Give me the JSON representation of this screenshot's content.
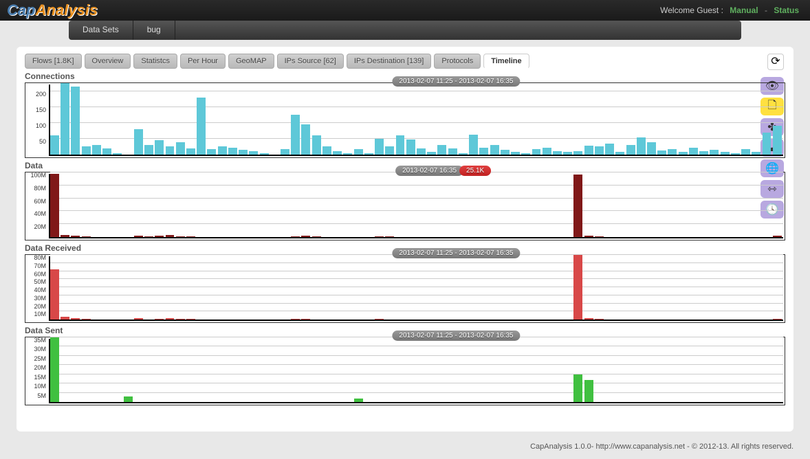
{
  "logo": {
    "part1": "Cap",
    "part2": "Analysis"
  },
  "topbar": {
    "welcome": "Welcome Guest :",
    "links": [
      "Manual",
      "Status"
    ],
    "separator": "-"
  },
  "menu": {
    "items": [
      "Data Sets",
      "bug"
    ]
  },
  "tabs": [
    {
      "label": "Flows [1.8K]",
      "active": false
    },
    {
      "label": "Overview",
      "active": false
    },
    {
      "label": "Statistcs",
      "active": false
    },
    {
      "label": "Per Hour",
      "active": false
    },
    {
      "label": "GeoMAP",
      "active": false
    },
    {
      "label": "IPs Source [62]",
      "active": false
    },
    {
      "label": "IPs Destination [139]",
      "active": false
    },
    {
      "label": "Protocols",
      "active": false
    },
    {
      "label": "Timeline",
      "active": true
    }
  ],
  "side_icons": [
    {
      "name": "eye-icon",
      "glyph": "👁",
      "cls": "si-purple"
    },
    {
      "name": "page-icon",
      "glyph": "🗋",
      "cls": "si-yellow"
    },
    {
      "name": "share-icon",
      "glyph": "✤",
      "cls": "si-purple"
    },
    {
      "name": "cloud-icon",
      "glyph": "☁",
      "cls": "si-purple"
    },
    {
      "name": "globe-icon",
      "glyph": "🌐",
      "cls": "si-purple"
    },
    {
      "name": "arrows-icon",
      "glyph": "⇿",
      "cls": "si-purple"
    },
    {
      "name": "clock-icon",
      "glyph": "🕓",
      "cls": "si-purple"
    }
  ],
  "charts": [
    {
      "title": "Connections",
      "height": 110,
      "badge": "2013-02-07 11:25 - 2013-02-07 16:35",
      "badge2": null,
      "bar_color": "#5ec8d8",
      "ymax": 225,
      "yticks": [
        {
          "v": 200,
          "l": "200"
        },
        {
          "v": 150,
          "l": "150"
        },
        {
          "v": 100,
          "l": "100"
        },
        {
          "v": 50,
          "l": "50"
        }
      ],
      "bars": [
        60,
        225,
        215,
        25,
        30,
        20,
        5,
        0,
        80,
        30,
        45,
        25,
        40,
        20,
        180,
        18,
        25,
        22,
        15,
        10,
        5,
        0,
        18,
        125,
        95,
        60,
        25,
        10,
        5,
        18,
        5,
        50,
        25,
        60,
        48,
        20,
        8,
        30,
        20,
        5,
        62,
        22,
        30,
        15,
        8,
        5,
        18,
        22,
        10,
        8,
        10,
        28,
        25,
        35,
        8,
        30,
        55,
        40,
        12,
        18,
        8,
        22,
        10,
        15,
        8,
        5,
        18,
        8,
        70,
        90
      ]
    },
    {
      "title": "Data",
      "height": 100,
      "badge": "2013-02-07 16:35",
      "badge2": "25.1K",
      "bar_color": "#801818",
      "ymax": 100,
      "yticks": [
        {
          "v": 100,
          "l": "100M"
        },
        {
          "v": 80,
          "l": "80M"
        },
        {
          "v": 60,
          "l": "60M"
        },
        {
          "v": 40,
          "l": "40M"
        },
        {
          "v": 20,
          "l": "20M"
        }
      ],
      "bars": [
        98,
        3,
        2,
        1,
        0,
        0,
        0,
        0,
        2,
        1,
        2,
        3,
        1,
        1,
        0,
        0,
        0,
        0,
        0,
        0,
        0,
        0,
        0,
        1,
        2,
        1,
        0,
        0,
        0,
        0,
        0,
        1,
        1,
        0,
        0,
        0,
        0,
        0,
        0,
        0,
        0,
        0,
        0,
        0,
        0,
        0,
        0,
        0,
        0,
        0,
        97,
        2,
        1,
        0,
        0,
        0,
        0,
        0,
        0,
        0,
        0,
        0,
        0,
        0,
        0,
        0,
        0,
        0,
        0,
        2
      ]
    },
    {
      "title": "Data Received",
      "height": 100,
      "badge": "2013-02-07 11:25 - 2013-02-07 16:35",
      "badge2": null,
      "bar_color": "#d84848",
      "ymax": 80,
      "yticks": [
        {
          "v": 80,
          "l": "80M"
        },
        {
          "v": 70,
          "l": "70M"
        },
        {
          "v": 60,
          "l": "60M"
        },
        {
          "v": 50,
          "l": "50M"
        },
        {
          "v": 40,
          "l": "40M"
        },
        {
          "v": 30,
          "l": "30M"
        },
        {
          "v": 20,
          "l": "20M"
        },
        {
          "v": 10,
          "l": "10M"
        }
      ],
      "bars": [
        62,
        3,
        2,
        1,
        0,
        0,
        0,
        0,
        2,
        0,
        1,
        2,
        1,
        1,
        0,
        0,
        0,
        0,
        0,
        0,
        0,
        0,
        0,
        1,
        1,
        0,
        0,
        0,
        0,
        0,
        0,
        1,
        0,
        0,
        0,
        0,
        0,
        0,
        0,
        0,
        0,
        0,
        0,
        0,
        0,
        0,
        0,
        0,
        0,
        0,
        80,
        2,
        1,
        0,
        0,
        0,
        0,
        0,
        0,
        0,
        0,
        0,
        0,
        0,
        0,
        0,
        0,
        0,
        0,
        1
      ]
    },
    {
      "title": "Data Sent",
      "height": 100,
      "badge": "2013-02-07 11:25 - 2013-02-07 16:35",
      "badge2": null,
      "bar_color": "#40c040",
      "ymax": 35,
      "yticks": [
        {
          "v": 35,
          "l": "35M"
        },
        {
          "v": 30,
          "l": "30M"
        },
        {
          "v": 25,
          "l": "25M"
        },
        {
          "v": 20,
          "l": "20M"
        },
        {
          "v": 15,
          "l": "15M"
        },
        {
          "v": 10,
          "l": "10M"
        },
        {
          "v": 5,
          "l": "5M"
        }
      ],
      "bars": [
        36,
        0,
        0,
        0,
        0,
        0,
        0,
        3,
        0,
        0,
        0,
        0,
        0,
        0,
        0,
        0,
        0,
        0,
        0,
        0,
        0,
        0,
        0,
        0,
        0,
        0,
        0,
        0,
        0,
        2,
        0,
        0,
        0,
        0,
        0,
        0,
        0,
        0,
        0,
        0,
        0,
        0,
        0,
        0,
        0,
        0,
        0,
        0,
        0,
        0,
        15,
        12,
        0,
        0,
        0,
        0,
        0,
        0,
        0,
        0,
        0,
        0,
        0,
        0,
        0,
        0,
        0,
        0,
        0,
        0
      ]
    }
  ],
  "footer": "CapAnalysis 1.0.0- http://www.capanalysis.net - © 2012-13. All rights reserved."
}
